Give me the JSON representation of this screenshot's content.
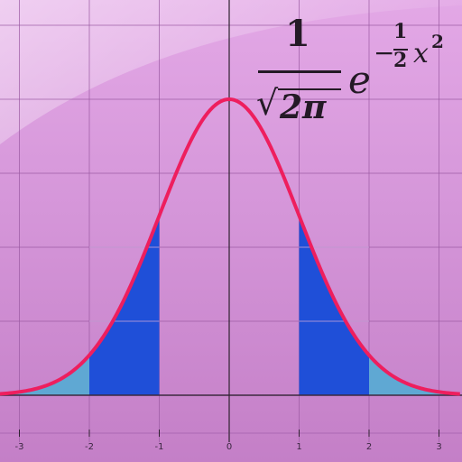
{
  "formula": {
    "numerator": "1",
    "sqrt_symbol": "√",
    "denominator": "2π",
    "base": "e",
    "exp_minus": "−",
    "exp_frac_num": "1",
    "exp_frac_den": "2",
    "exp_var": "x",
    "exp_power": "2"
  },
  "colors": {
    "curve": "#ee1e5e",
    "band_1_2": "#1f4fd8",
    "tail_2_3": "#5fa8d3",
    "grid": "#9b5aa3",
    "axis": "#2e2230",
    "baseline": "#3b2a3e"
  },
  "chart_data": {
    "type": "area",
    "function": "standard normal density",
    "xlim": [
      -3.3,
      3.3
    ],
    "ylim": [
      0,
      0.4
    ],
    "x_ticks": [
      -3,
      -2,
      -1,
      0,
      1,
      2,
      3
    ],
    "x_tick_labels": [
      "-3",
      "-2",
      "-1",
      "0",
      "1",
      "2",
      "3"
    ],
    "shaded_regions": [
      {
        "from": -3.3,
        "to": -2,
        "color_key": "tail_2_3"
      },
      {
        "from": -2,
        "to": -1,
        "color_key": "band_1_2"
      },
      {
        "from": 1,
        "to": 2,
        "color_key": "band_1_2"
      },
      {
        "from": 2,
        "to": 3.3,
        "color_key": "tail_2_3"
      }
    ],
    "grid": true
  }
}
